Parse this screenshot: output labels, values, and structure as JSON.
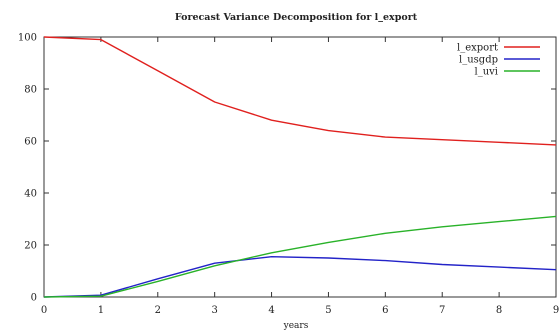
{
  "chart_data": {
    "type": "line",
    "title": "Forecast Variance Decomposition for l_export",
    "xlabel": "years",
    "ylabel": "",
    "xlim": [
      0,
      9
    ],
    "ylim": [
      0,
      100
    ],
    "x_ticks": [
      0,
      1,
      2,
      3,
      4,
      5,
      6,
      7,
      8,
      9
    ],
    "y_ticks": [
      0,
      20,
      40,
      60,
      80,
      100
    ],
    "grid": false,
    "legend_position": "top-right",
    "x": [
      0,
      1,
      2,
      3,
      4,
      5,
      6,
      7,
      8,
      9
    ],
    "series": [
      {
        "name": "l_export",
        "color": "#e0201e",
        "values": [
          100,
          99,
          87,
          75,
          68,
          64,
          61.5,
          60.5,
          59.5,
          58.5
        ]
      },
      {
        "name": "l_usgdp",
        "color": "#2323c8",
        "values": [
          0,
          0.7,
          7,
          13,
          15.5,
          15,
          14,
          12.5,
          11.5,
          10.5
        ]
      },
      {
        "name": "l_uvi",
        "color": "#29b229",
        "values": [
          0,
          0.3,
          6,
          12,
          17,
          21,
          24.5,
          27,
          29,
          31
        ]
      }
    ]
  }
}
